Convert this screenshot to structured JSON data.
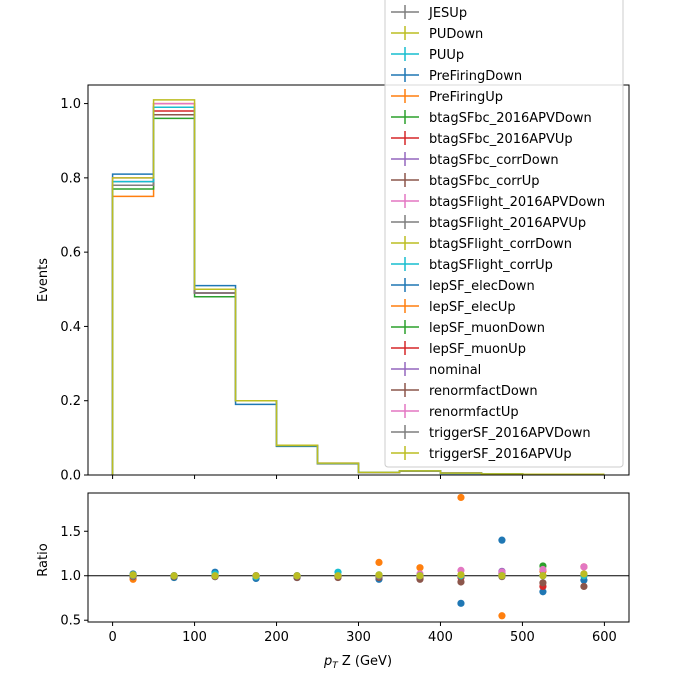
{
  "chart_data": [
    {
      "panel": "main",
      "type": "step-histogram",
      "ylabel": "Events",
      "xlim": [
        -30,
        630
      ],
      "ylim": [
        0,
        1.05
      ],
      "bin_edges": [
        0,
        50,
        100,
        150,
        200,
        250,
        300,
        350,
        400,
        450,
        500,
        550,
        600
      ],
      "yticks": [
        "0.0",
        "0.2",
        "0.4",
        "0.6",
        "0.8",
        "1.0"
      ],
      "legend": {
        "placement": "top-right, extending above the axes",
        "entries": [
          "JESUp",
          "PUDown",
          "PUUp",
          "PreFiringDown",
          "PreFiringUp",
          "btagSFbc_2016APVDown",
          "btagSFbc_2016APVUp",
          "btagSFbc_corrDown",
          "btagSFbc_corrUp",
          "btagSFlight_2016APVDown",
          "btagSFlight_2016APVUp",
          "btagSFlight_corrDown",
          "btagSFlight_corrUp",
          "lepSF_elecDown",
          "lepSF_elecUp",
          "lepSF_muonDown",
          "lepSF_muonUp",
          "nominal",
          "renormfactDown",
          "renormfactUp",
          "triggerSF_2016APVDown",
          "triggerSF_2016APVUp"
        ]
      },
      "series": [
        {
          "name": "PreFiringUp",
          "color": "#ff7f0e",
          "values": [
            0.75,
            1.0,
            0.49,
            0.2,
            0.08,
            0.03,
            0.007,
            0.011,
            0.005,
            0.003,
            0.002,
            0.002
          ]
        },
        {
          "name": "lepSF_elecDown",
          "color": "#1f77b4",
          "values": [
            0.81,
            0.97,
            0.51,
            0.19,
            0.077,
            0.031,
            0.007,
            0.01,
            0.004,
            0.003,
            0.002,
            0.002
          ]
        },
        {
          "name": "lepSF_muonDown",
          "color": "#2ca02c",
          "values": [
            0.77,
            0.96,
            0.48,
            0.2,
            0.078,
            0.031,
            0.007,
            0.011,
            0.005,
            0.003,
            0.002,
            0.002
          ]
        },
        {
          "name": "lepSF_muonUp",
          "color": "#d62728",
          "values": [
            0.78,
            0.98,
            0.49,
            0.2,
            0.079,
            0.031,
            0.007,
            0.011,
            0.005,
            0.003,
            0.002,
            0.002
          ]
        },
        {
          "name": "nominal",
          "color": "#9467bd",
          "values": [
            0.79,
            0.99,
            0.49,
            0.2,
            0.079,
            0.031,
            0.007,
            0.011,
            0.005,
            0.003,
            0.002,
            0.002
          ]
        },
        {
          "name": "renormfactDown",
          "color": "#8c564b",
          "values": [
            0.78,
            0.97,
            0.49,
            0.2,
            0.078,
            0.031,
            0.007,
            0.011,
            0.005,
            0.003,
            0.002,
            0.002
          ]
        },
        {
          "name": "renormfactUp",
          "color": "#e377c2",
          "values": [
            0.8,
            1.0,
            0.5,
            0.2,
            0.08,
            0.032,
            0.007,
            0.011,
            0.005,
            0.003,
            0.002,
            0.002
          ]
        },
        {
          "name": "triggerSF_2016APVDown",
          "color": "#7f7f7f",
          "values": [
            0.78,
            0.99,
            0.49,
            0.2,
            0.079,
            0.031,
            0.007,
            0.011,
            0.005,
            0.003,
            0.002,
            0.002
          ]
        },
        {
          "name": "btagSFlight_corrUp",
          "color": "#17becf",
          "values": [
            0.79,
            0.99,
            0.5,
            0.2,
            0.079,
            0.031,
            0.007,
            0.011,
            0.005,
            0.003,
            0.002,
            0.002
          ]
        },
        {
          "name": "triggerSF_2016APVUp",
          "color": "#bcbd22",
          "values": [
            0.8,
            1.01,
            0.5,
            0.2,
            0.08,
            0.032,
            0.007,
            0.011,
            0.005,
            0.003,
            0.002,
            0.002
          ]
        }
      ]
    },
    {
      "panel": "ratio",
      "type": "scatter",
      "ylabel": "Ratio",
      "xlabel_prefix": "p",
      "xlabel_sub": "T",
      "xlabel_rest": " Z (GeV)",
      "xlim": [
        -30,
        630
      ],
      "ylim": [
        0.48,
        1.93
      ],
      "reference_line": 1.0,
      "xticks": [
        "0",
        "100",
        "200",
        "300",
        "400",
        "500",
        "600"
      ],
      "yticks": [
        "0.5",
        "1.0",
        "1.5"
      ],
      "x": [
        25,
        75,
        125,
        175,
        225,
        275,
        325,
        375,
        425,
        475,
        525,
        575
      ],
      "series": [
        {
          "color": "#ff7f0e",
          "values": [
            0.96,
            1.0,
            1.0,
            1.0,
            1.0,
            1.0,
            1.15,
            1.09,
            1.88,
            0.55,
            1.05,
            1.1
          ]
        },
        {
          "color": "#1f77b4",
          "values": [
            1.02,
            0.98,
            1.04,
            0.97,
            0.98,
            0.99,
            0.96,
            0.98,
            0.69,
            1.4,
            0.82,
            0.95
          ]
        },
        {
          "color": "#2ca02c",
          "values": [
            0.99,
            0.99,
            0.99,
            1.0,
            0.99,
            0.99,
            1.0,
            1.0,
            1.0,
            1.03,
            1.11,
            1.0
          ]
        },
        {
          "color": "#d62728",
          "values": [
            1.0,
            1.0,
            1.0,
            1.0,
            1.0,
            1.0,
            1.0,
            0.97,
            0.98,
            1.01,
            0.88,
            1.0
          ]
        },
        {
          "color": "#9467bd",
          "values": [
            1.0,
            1.0,
            1.0,
            1.0,
            1.0,
            1.0,
            1.0,
            1.0,
            1.0,
            1.05,
            1.0,
            1.02
          ]
        },
        {
          "color": "#8c564b",
          "values": [
            0.99,
            0.99,
            0.99,
            0.99,
            0.98,
            0.98,
            0.98,
            0.96,
            0.93,
            0.99,
            0.92,
            0.88
          ]
        },
        {
          "color": "#e377c2",
          "values": [
            1.0,
            1.0,
            1.0,
            1.0,
            1.0,
            1.0,
            1.0,
            1.02,
            1.06,
            1.04,
            1.07,
            1.1
          ]
        },
        {
          "color": "#7f7f7f",
          "values": [
            1.0,
            1.0,
            1.0,
            1.0,
            1.0,
            1.0,
            1.0,
            1.0,
            1.0,
            1.0,
            1.0,
            1.0
          ]
        },
        {
          "color": "#17becf",
          "values": [
            1.01,
            1.0,
            1.02,
            0.99,
            1.0,
            1.04,
            1.01,
            1.0,
            1.0,
            1.0,
            1.0,
            1.0
          ]
        },
        {
          "color": "#bcbd22",
          "values": [
            1.01,
            1.0,
            1.0,
            1.0,
            1.0,
            1.0,
            1.01,
            1.0,
            1.01,
            1.0,
            1.0,
            1.02
          ]
        }
      ]
    }
  ],
  "colors": {
    "cycle": [
      "#7f7f7f",
      "#bcbd22",
      "#17becf",
      "#1f77b4",
      "#ff7f0e",
      "#2ca02c",
      "#d62728",
      "#9467bd",
      "#8c564b",
      "#e377c2"
    ]
  }
}
